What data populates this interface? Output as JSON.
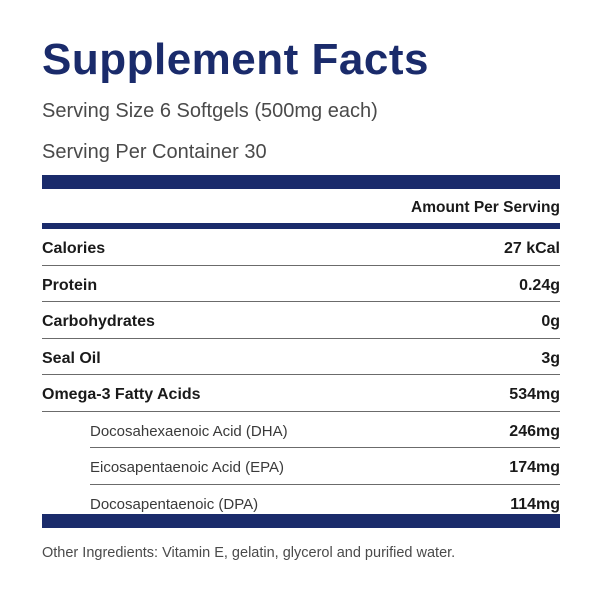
{
  "label": {
    "title": "Supplement Facts",
    "serving_size": "Serving Size 6 Softgels (500mg each)",
    "servings_per_container": "Serving Per Container 30",
    "amount_header": "Amount Per Serving",
    "nutrients": [
      {
        "name": "Calories",
        "amount": "27 kCal"
      },
      {
        "name": "Protein",
        "amount": "0.24g"
      },
      {
        "name": "Carbohydrates",
        "amount": "0g"
      },
      {
        "name": "Seal Oil",
        "amount": "3g"
      },
      {
        "name": "Omega-3 Fatty Acids",
        "amount": "534mg"
      },
      {
        "name": "Docosahexaenoic Acid (DHA)",
        "amount": "246mg"
      },
      {
        "name": "Eicosapentaenoic Acid (EPA)",
        "amount": "174mg"
      },
      {
        "name": "Docosapentaenoic (DPA)",
        "amount": "114mg"
      }
    ],
    "other_ingredients": "Other Ingredients: Vitamin E, gelatin, glycerol and purified water.",
    "colors": {
      "accent": "#1a2b6b"
    }
  }
}
